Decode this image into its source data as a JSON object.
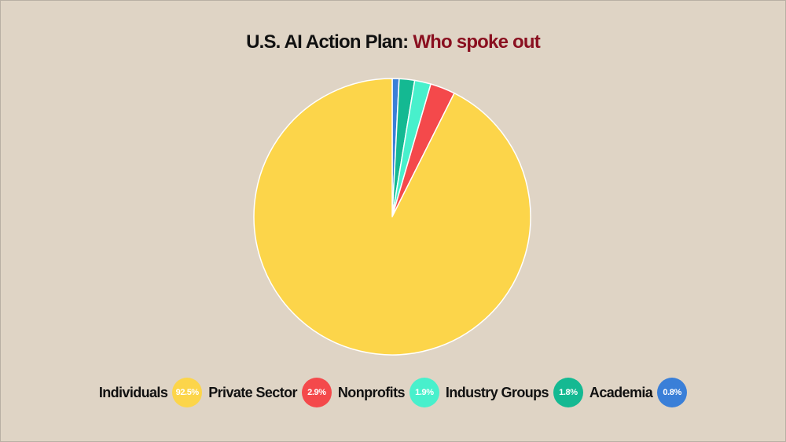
{
  "title": {
    "main": "U.S. AI Action Plan:",
    "accent": "Who spoke out"
  },
  "colors": {
    "background": "#dfd4c5",
    "title_accent": "#8a1020",
    "slice_border": "#ffffff"
  },
  "chart_data": {
    "type": "pie",
    "title": "U.S. AI Action Plan: Who spoke out",
    "start_angle_deg": 0,
    "direction": "clockwise",
    "order_from_top": [
      "Academia",
      "Industry Groups",
      "Nonprofits",
      "Private Sector",
      "Individuals"
    ],
    "slices": [
      {
        "label": "Individuals",
        "value": 92.5,
        "display": "92.5%",
        "color": "#fcd54a"
      },
      {
        "label": "Private Sector",
        "value": 2.9,
        "display": "2.9%",
        "color": "#f4494b"
      },
      {
        "label": "Nonprofits",
        "value": 1.9,
        "display": "1.9%",
        "color": "#48f0cc"
      },
      {
        "label": "Industry Groups",
        "value": 1.8,
        "display": "1.8%",
        "color": "#14b992"
      },
      {
        "label": "Academia",
        "value": 0.8,
        "display": "0.8%",
        "color": "#3a7fd8"
      }
    ],
    "legend_position": "bottom"
  }
}
